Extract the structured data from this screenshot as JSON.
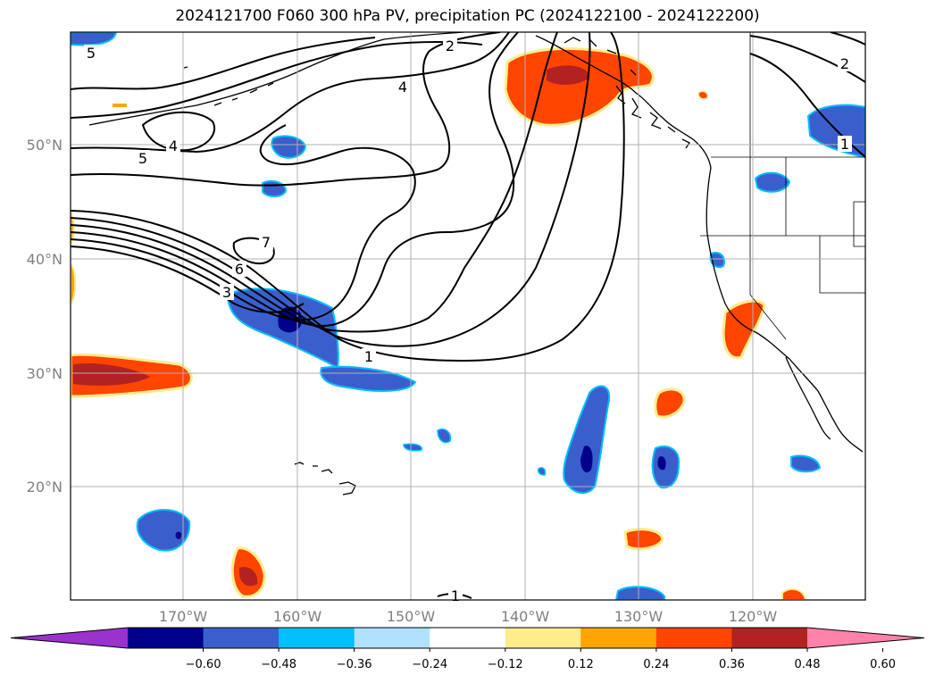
{
  "title": "2024121700 F060 300 hPa PV, precipitation PC (2024122100 - 2024122200)",
  "lat_labels": [
    "50°N",
    "40°N",
    "30°N",
    "20°N"
  ],
  "lon_labels": [
    "170°W",
    "160°W",
    "150°W",
    "140°W",
    "130°W",
    "120°W"
  ],
  "colorbar": {
    "ticks": [
      "−0.60",
      "−0.48",
      "−0.36",
      "−0.24",
      "−0.12",
      "0.12",
      "0.24",
      "0.36",
      "0.48",
      "0.60"
    ],
    "colors": [
      "#9a32cd",
      "#00008b",
      "#3a5fcd",
      "#00bfff",
      "#b0e2ff",
      "#ffffff",
      "#ffec8b",
      "#ffa500",
      "#ff4500",
      "#b22222",
      "#ff82ab"
    ]
  },
  "pv_contour_labels": [
    "1",
    "2",
    "3",
    "4",
    "5",
    "6",
    "7",
    "1",
    "2",
    "1",
    "4",
    "5"
  ],
  "colors": {
    "neg_strong": "#00008b",
    "neg": "#3a5fcd",
    "neg_light": "#00bfff",
    "pos_light": "#ffec8b",
    "pos": "#ff4500",
    "pos_strong": "#b22222",
    "grid": "#b0b0b0"
  }
}
